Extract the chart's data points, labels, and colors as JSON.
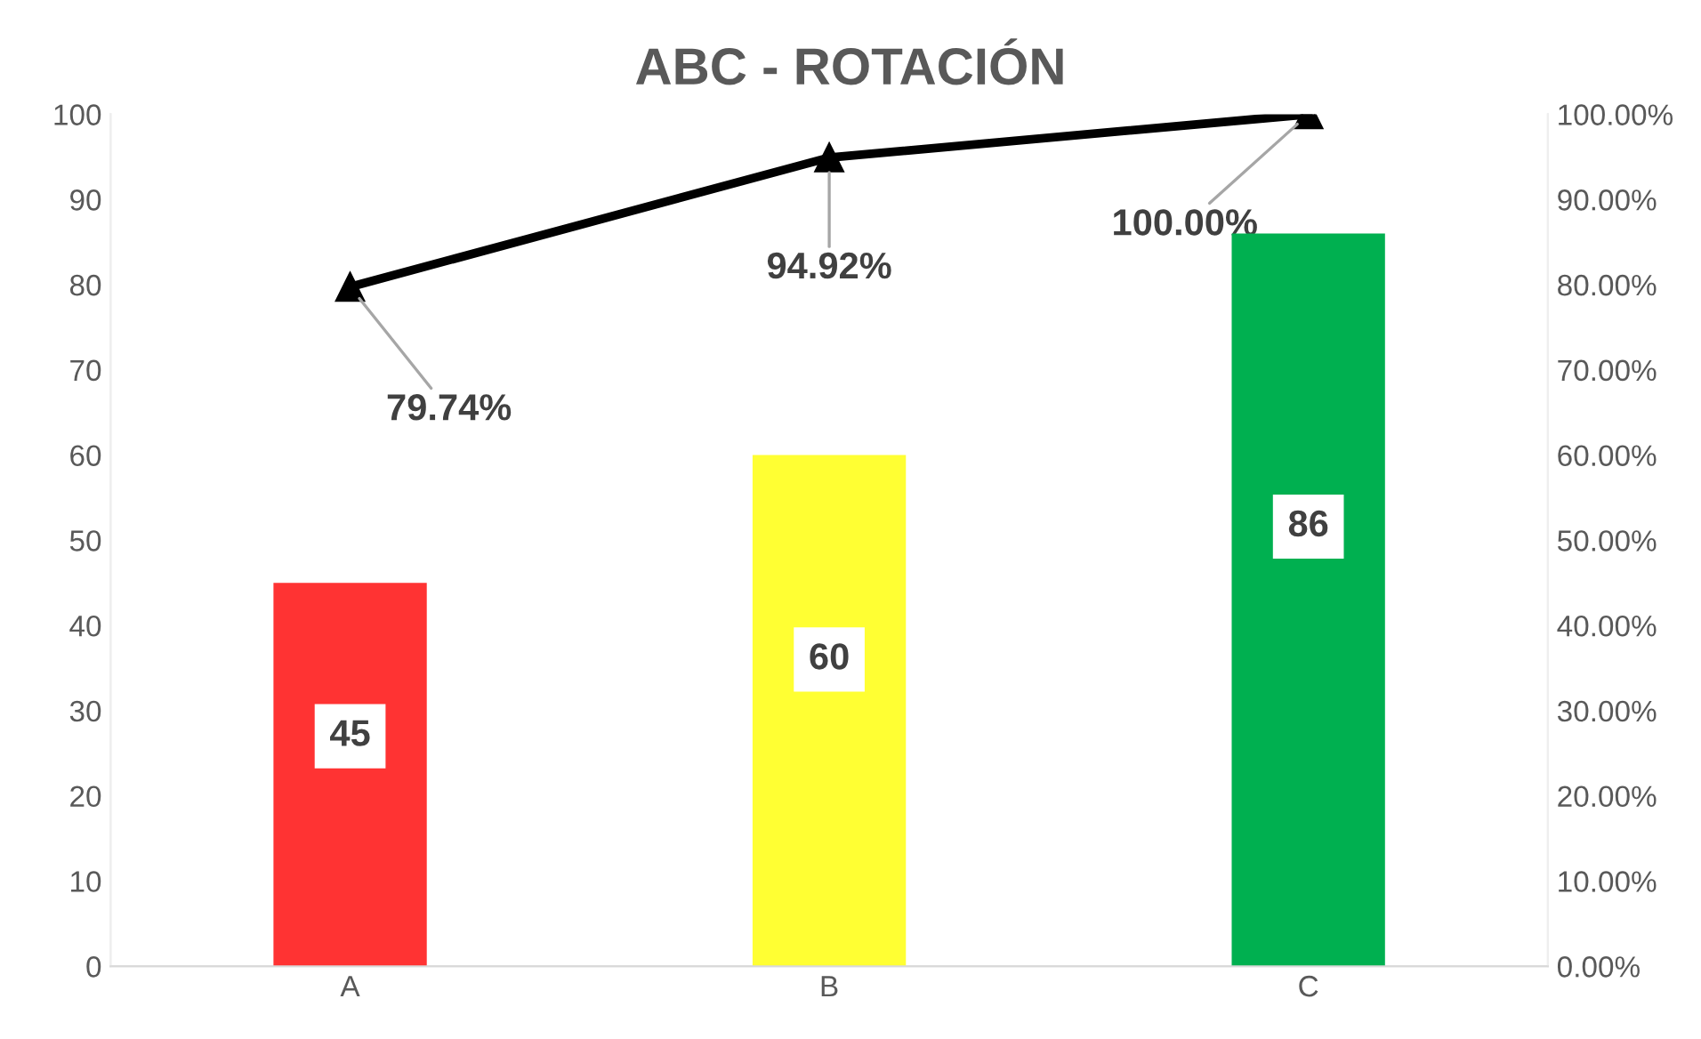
{
  "chart_data": {
    "type": "bar",
    "title": "ABC - ROTACIÓN",
    "categories": [
      "A",
      "B",
      "C"
    ],
    "series": [
      {
        "colors": [
          "#ff3333",
          "#ffff33",
          "#00b050"
        ],
        "values": [
          45,
          60,
          86
        ],
        "value_labels": [
          "45",
          "60",
          "86"
        ]
      },
      {
        "type": "line",
        "axis": "y2",
        "color": "#000000",
        "marker": "triangle",
        "values": [
          79.74,
          94.92,
          100.0
        ],
        "value_labels": [
          "79.74%",
          "94.92%",
          "100.00%"
        ]
      }
    ],
    "ylim": [
      0,
      100
    ],
    "yticks": [
      0,
      10,
      20,
      30,
      40,
      50,
      60,
      70,
      80,
      90,
      100
    ],
    "y2lim": [
      0,
      100
    ],
    "y2ticks": [
      {
        "value": 0,
        "label": "0.00%"
      },
      {
        "value": 10,
        "label": "10.00%"
      },
      {
        "value": 20,
        "label": "20.00%"
      },
      {
        "value": 30,
        "label": "30.00%"
      },
      {
        "value": 40,
        "label": "40.00%"
      },
      {
        "value": 50,
        "label": "50.00%"
      },
      {
        "value": 60,
        "label": "60.00%"
      },
      {
        "value": 70,
        "label": "70.00%"
      },
      {
        "value": 80,
        "label": "80.00%"
      },
      {
        "value": 90,
        "label": "90.00%"
      },
      {
        "value": 100,
        "label": "100.00%"
      }
    ],
    "grid": false,
    "legend": false
  }
}
